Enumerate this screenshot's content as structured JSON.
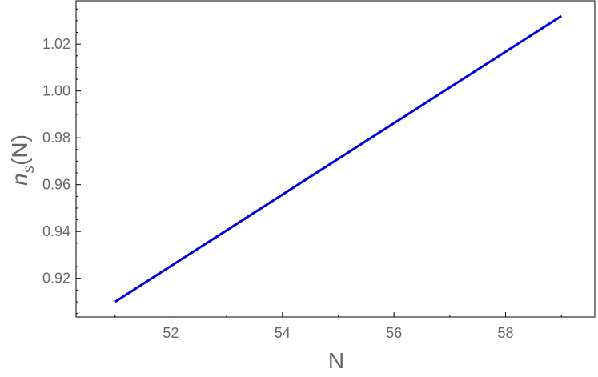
{
  "chart_data": {
    "type": "line",
    "xlabel": "N",
    "ylabel_main": "n",
    "ylabel_sub": "s",
    "ylabel_suffix": "(N)",
    "xlim": [
      50.3,
      59.6
    ],
    "ylim": [
      0.9035,
      1.0385
    ],
    "x_ticks": [
      52,
      54,
      56,
      58
    ],
    "x_tick_labels": [
      "52",
      "54",
      "56",
      "58"
    ],
    "y_ticks": [
      0.92,
      0.94,
      0.96,
      0.98,
      1.0,
      1.02
    ],
    "y_tick_labels": [
      "0.92",
      "0.94",
      "0.96",
      "0.98",
      "1.00",
      "1.02"
    ],
    "grid": false,
    "series": [
      {
        "color": "#0000dd",
        "x": [
          51,
          59
        ],
        "y": [
          0.91,
          1.032
        ]
      }
    ]
  }
}
